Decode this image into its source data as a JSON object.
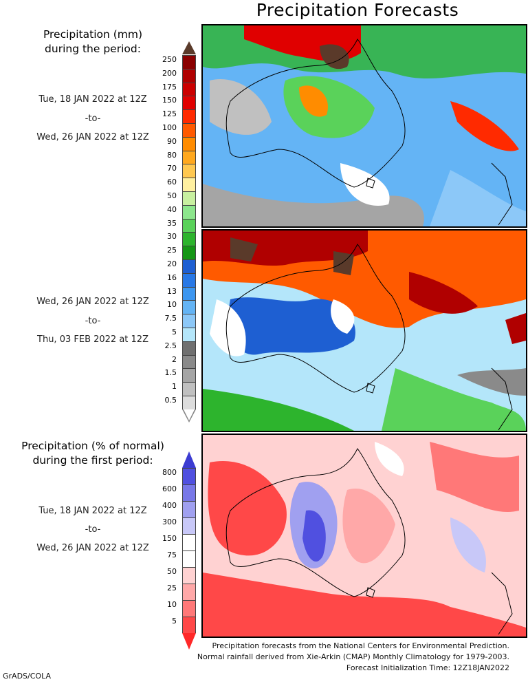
{
  "title": "Precipitation Forecasts",
  "mm_header": [
    "Precipitation (mm)",
    "during the period:"
  ],
  "period1": {
    "start": "Tue, 18 JAN 2022 at 12Z",
    "sep": "-to-",
    "end": "Wed, 26 JAN 2022 at 12Z"
  },
  "period2": {
    "start": "Wed, 26 JAN 2022 at 12Z",
    "sep": "-to-",
    "end": "Thu, 03 FEB 2022 at 12Z"
  },
  "pct_header": [
    "Precipitation (% of normal)",
    "during the first period:"
  ],
  "period3": {
    "start": "Tue, 18 JAN 2022 at 12Z",
    "sep": "-to-",
    "end": "Wed, 26 JAN 2022 at 12Z"
  },
  "mm_legend": {
    "ticks": [
      "250",
      "200",
      "175",
      "150",
      "125",
      "100",
      "90",
      "80",
      "70",
      "60",
      "50",
      "40",
      "35",
      "30",
      "25",
      "20",
      "16",
      "13",
      "10",
      "7.5",
      "5",
      "2.5",
      "2",
      "1.5",
      "1",
      "0.5"
    ],
    "colors": [
      "#8b0000",
      "#b00000",
      "#cc0000",
      "#e00000",
      "#ff2a00",
      "#ff5a00",
      "#ff8c00",
      "#ffa81e",
      "#ffc850",
      "#fff0a0",
      "#c8f0a0",
      "#8ce68c",
      "#5ad25a",
      "#2db42d",
      "#159615",
      "#1e5fd2",
      "#2878e6",
      "#3c96f0",
      "#64b4f5",
      "#8cc8f8",
      "#b4e6fa",
      "#707070",
      "#8a8a8a",
      "#a5a5a5",
      "#c0c0c0",
      "#dcdcdc"
    ],
    "top_color": "#5a3a2a"
  },
  "pct_legend": {
    "ticks": [
      "800",
      "600",
      "400",
      "300",
      "150",
      "75",
      "50",
      "25",
      "10",
      "5"
    ],
    "colors": [
      "#5050e0",
      "#7878e8",
      "#a0a0f0",
      "#c8c8f8",
      "#ffffff",
      "#ffffff",
      "#ffd2d2",
      "#ffa8a8",
      "#ff7878",
      "#ff4848"
    ],
    "top_color": "#3c3cd2",
    "bottom_color": "#ff2828"
  },
  "footer": [
    "Precipitation forecasts from the National Centers for Environmental Prediction.",
    "Normal rainfall derived from Xie-Arkin (CMAP) Monthly Climatology for 1979-2003.",
    "Forecast Initialization Time: 12Z18JAN2022"
  ],
  "credit": "GrADS/COLA"
}
